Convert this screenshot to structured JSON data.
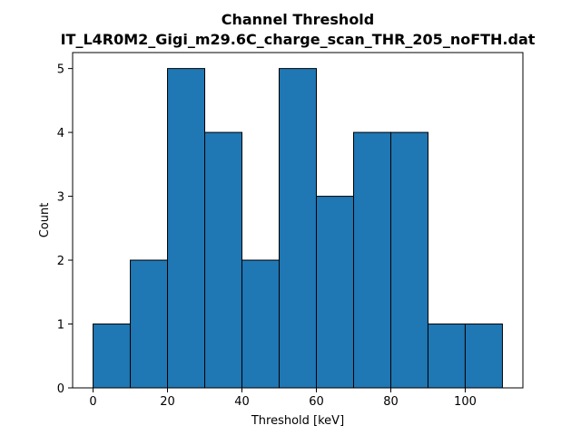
{
  "chart_data": {
    "type": "bar",
    "title": "Channel Threshold",
    "subtitle": "IT_L4R0M2_Gigi_m29.6C_charge_scan_THR_205_noFTH.dat",
    "xlabel": "Threshold [keV]",
    "ylabel": "Count",
    "bin_edges": [
      0,
      10,
      20,
      30,
      40,
      50,
      60,
      70,
      80,
      90,
      100,
      110
    ],
    "counts": [
      1,
      2,
      5,
      4,
      2,
      5,
      3,
      4,
      4,
      1,
      1
    ],
    "xlim": [
      -5.5,
      115.5
    ],
    "ylim": [
      0,
      5.25
    ],
    "xticks": [
      0,
      20,
      40,
      60,
      80,
      100
    ],
    "yticks": [
      0,
      1,
      2,
      3,
      4,
      5
    ],
    "bar_color": "#1f77b4",
    "edge_color": "#000000",
    "grid": false,
    "legend": "none"
  }
}
